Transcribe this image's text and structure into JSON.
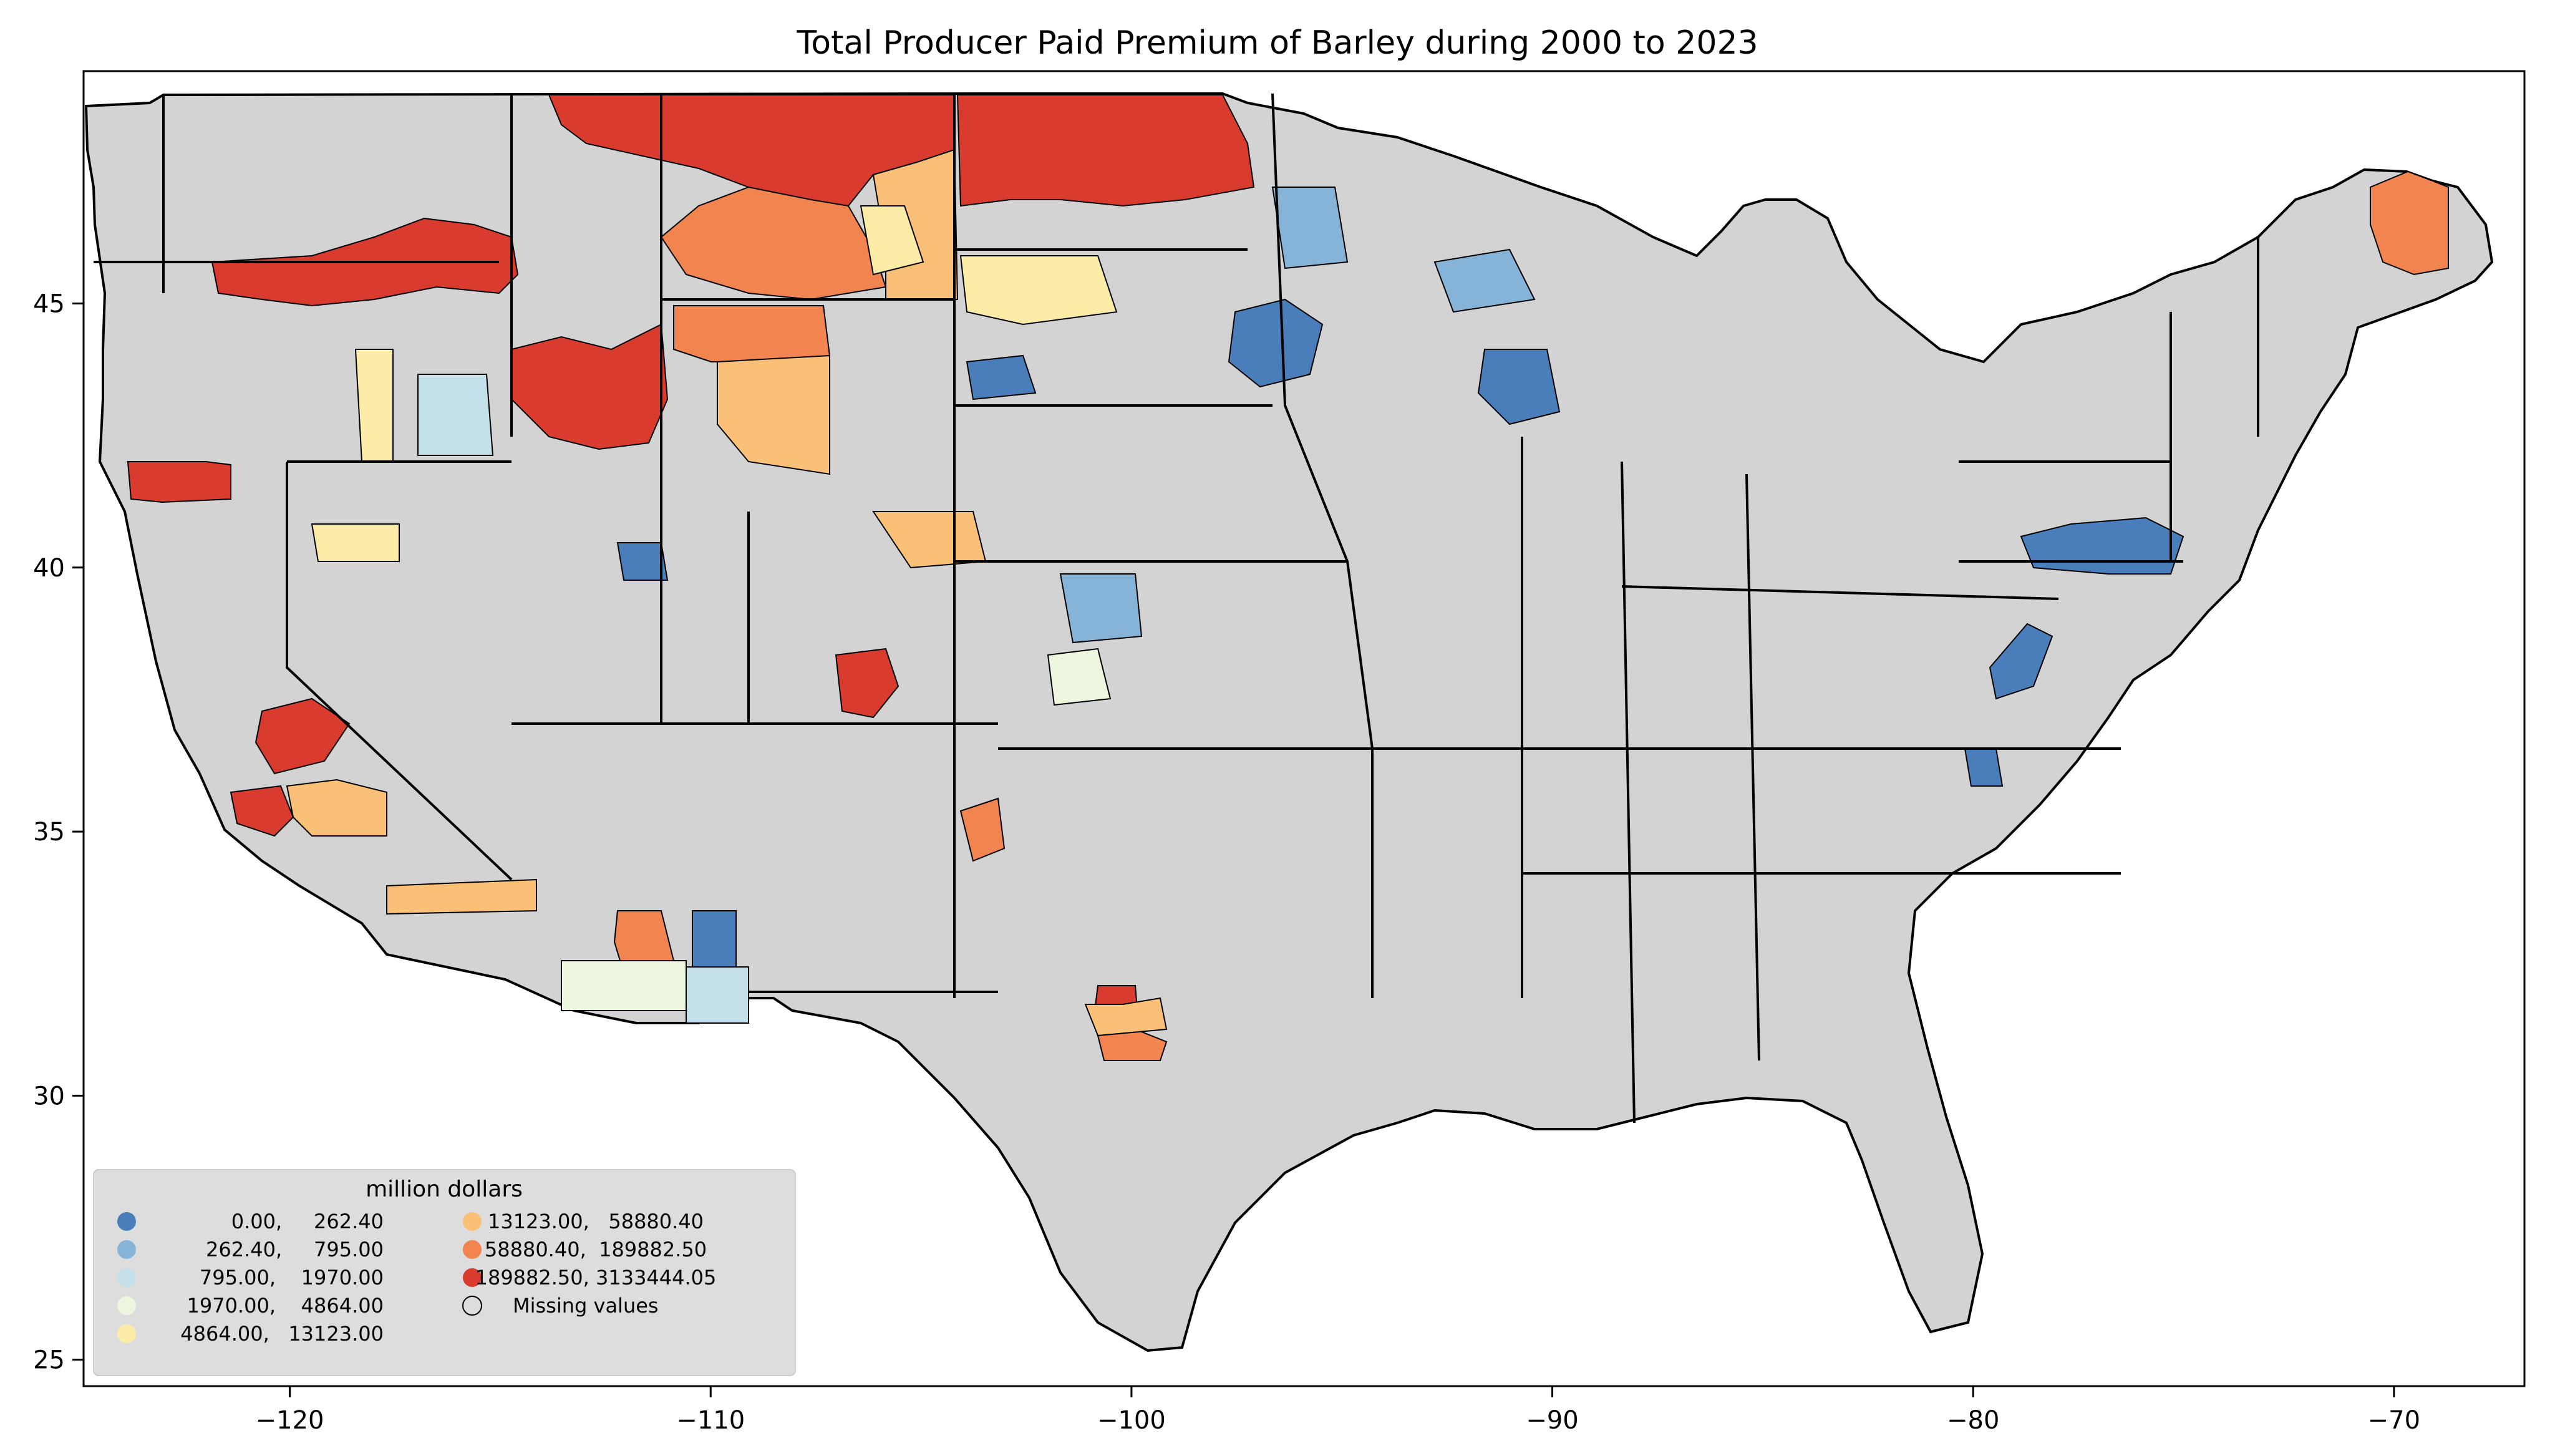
{
  "chart_data": {
    "type": "choropleth-map",
    "title": "Total Producer Paid Premium of Barley during 2000 to 2023",
    "x_ticks": [
      "−120",
      "−110",
      "−100",
      "−90",
      "−80",
      "−70"
    ],
    "x_tick_values": [
      -120,
      -110,
      -100,
      -90,
      -80,
      -70
    ],
    "y_ticks": [
      "25",
      "30",
      "35",
      "40",
      "45"
    ],
    "y_tick_values": [
      25,
      30,
      35,
      40,
      45
    ],
    "xlim": [
      -124.9,
      -66.9
    ],
    "ylim": [
      24.5,
      49.4
    ],
    "grid": false,
    "legend_placement": "lower-left",
    "legend": {
      "title": "million dollars",
      "items": [
        {
          "label": "0.00,     262.40",
          "color": "#4a7ebb"
        },
        {
          "label": "262.40,     795.00",
          "color": "#86b4d8"
        },
        {
          "label": "795.00,    1970.00",
          "color": "#c3e0eb"
        },
        {
          "label": "1970.00,    4864.00",
          "color": "#edf6de"
        },
        {
          "label": "4864.00,   13123.00",
          "color": "#fdeca8"
        },
        {
          "label": "13123.00,   58880.40",
          "color": "#fbc077"
        },
        {
          "label": "58880.40,  189882.50",
          "color": "#f2844f"
        },
        {
          "label": "189882.50, 3133444.05",
          "color": "#d93b2f"
        },
        {
          "label": "Missing values",
          "color": "#d3d3d3"
        }
      ]
    },
    "missing_color": "#d3d3d3"
  }
}
